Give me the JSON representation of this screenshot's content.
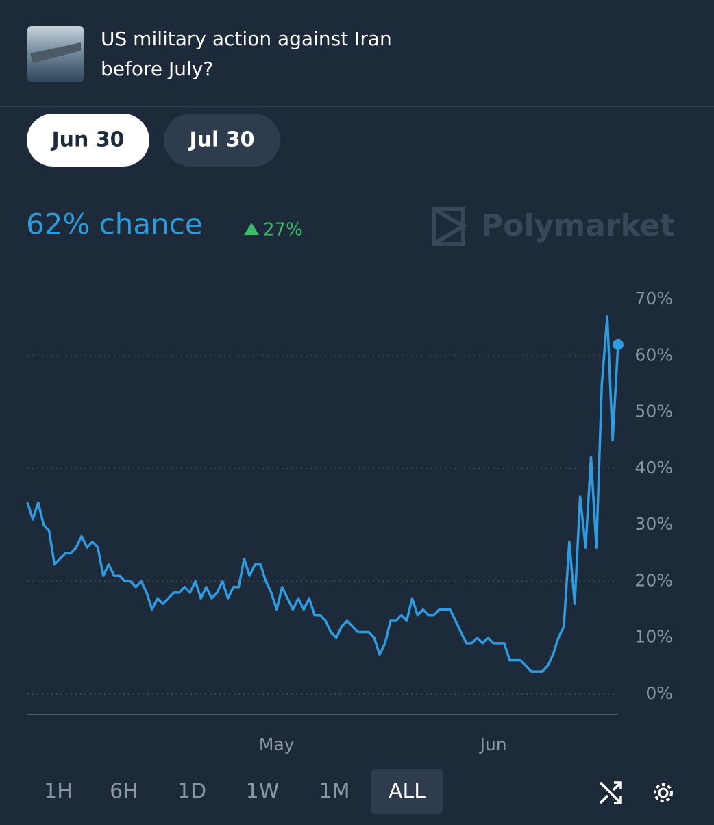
{
  "header": {
    "title_lines": [
      "US military action against Iran",
      "before July?"
    ]
  },
  "tabs": [
    "Jun 30",
    "Jul 30"
  ],
  "headline": {
    "chance": "62% chance",
    "change": "27%"
  },
  "brand": "Polymarket",
  "chart_data": {
    "type": "line",
    "color": "#2f9be0",
    "values": [
      34,
      31,
      34,
      30,
      29,
      23,
      24,
      25,
      25,
      26,
      28,
      26,
      27,
      26,
      21,
      23,
      21,
      21,
      20,
      20,
      19,
      20,
      18,
      15,
      17,
      16,
      17,
      18,
      18,
      19,
      18,
      20,
      17,
      19,
      17,
      18,
      20,
      17,
      19,
      19,
      24,
      21,
      23,
      23,
      20,
      18,
      15,
      19,
      17,
      15,
      17,
      15,
      17,
      14,
      14,
      13,
      11,
      10,
      12,
      13,
      12,
      11,
      11,
      11,
      10,
      7,
      9,
      13,
      13,
      14,
      13,
      17,
      14,
      15,
      14,
      14,
      15,
      15,
      15,
      13,
      11,
      9,
      9,
      10,
      9,
      10,
      9,
      9,
      9,
      6,
      6,
      6,
      5,
      4,
      4,
      4,
      5,
      7,
      10,
      12,
      27,
      16,
      35,
      26,
      42,
      26,
      55,
      67,
      45,
      62
    ],
    "xlim": [
      0,
      109
    ],
    "xticks": [
      {
        "value": 46,
        "label": "May"
      },
      {
        "value": 86,
        "label": "Jun"
      }
    ],
    "ylim": [
      0,
      70
    ],
    "yticks": [
      {
        "value": 0,
        "label": "0%"
      },
      {
        "value": 10,
        "label": "10%"
      },
      {
        "value": 20,
        "label": "20%"
      },
      {
        "value": 30,
        "label": "30%"
      },
      {
        "value": 40,
        "label": "40%"
      },
      {
        "value": 50,
        "label": "50%"
      },
      {
        "value": 60,
        "label": "60%"
      },
      {
        "value": 70,
        "label": "70%"
      }
    ]
  },
  "ranges": [
    "1H",
    "6H",
    "1D",
    "1W",
    "1M",
    "ALL"
  ],
  "active_range": "ALL"
}
